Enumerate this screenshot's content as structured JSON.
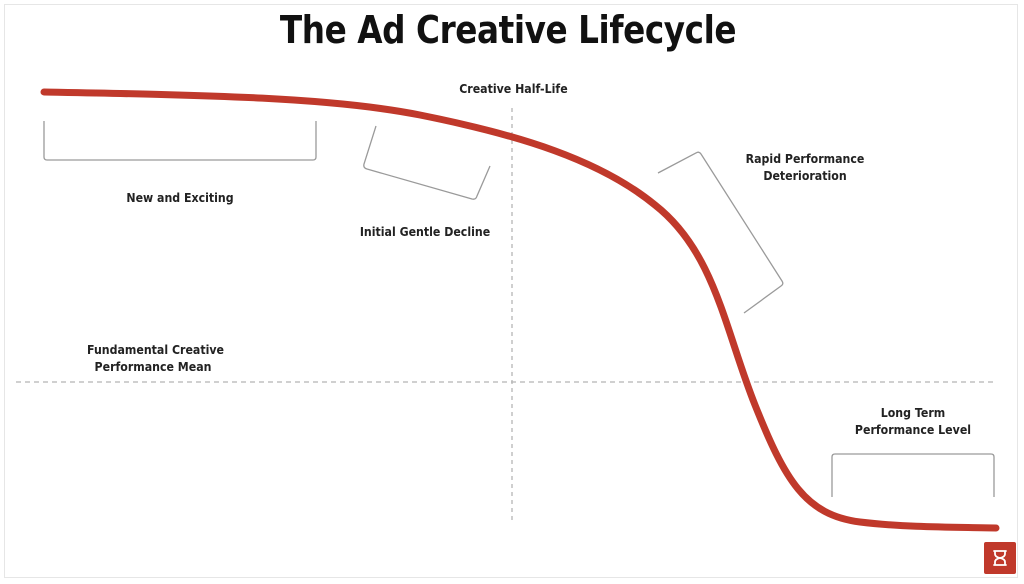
{
  "title": "The Ad Creative Lifecycle",
  "labels": {
    "half_life": "Creative Half-Life",
    "new_exciting": "New and Exciting",
    "gentle_decline": "Initial Gentle Decline",
    "rapid_line1": "Rapid Performance",
    "rapid_line2": "Deterioration",
    "mean_line1": "Fundamental Creative",
    "mean_line2": "Performance Mean",
    "long_line1": "Long Term",
    "long_line2": "Performance Level"
  },
  "colors": {
    "curve": "#c0392b",
    "guide": "#b5b5b5",
    "bracket": "#9a9a9a",
    "logo": "#c0392b"
  },
  "icons": {
    "logo": "brand-logo-icon"
  }
}
